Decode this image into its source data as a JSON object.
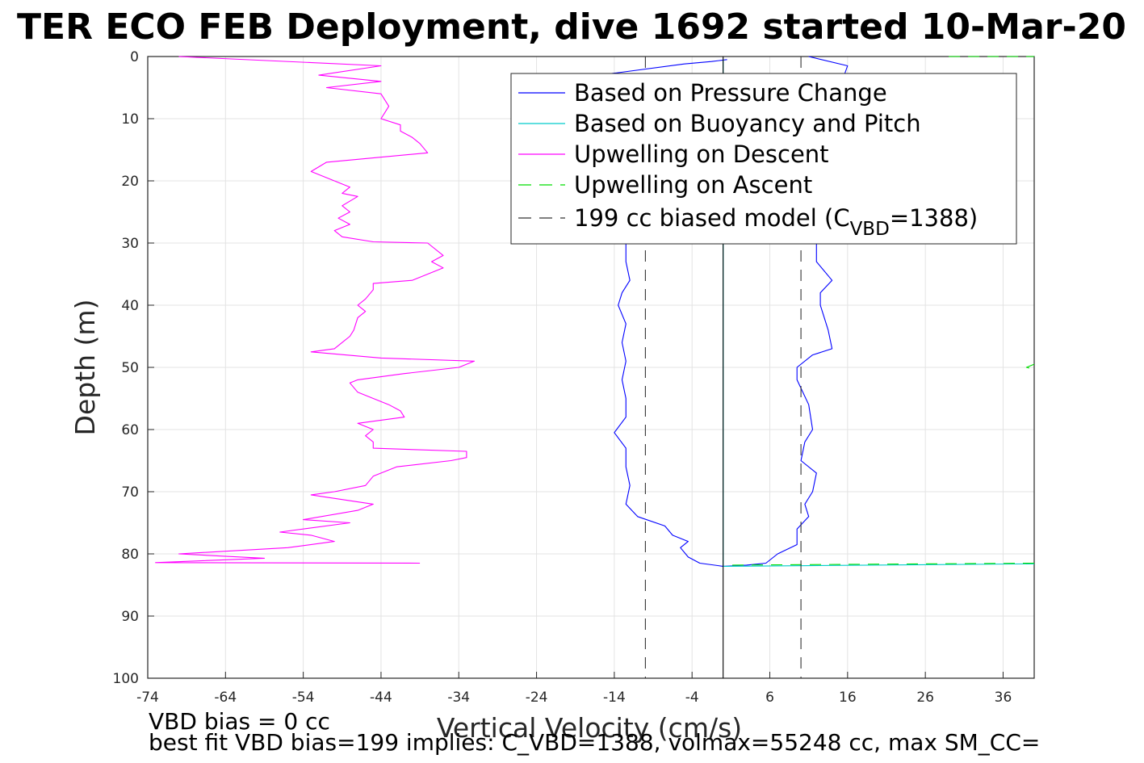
{
  "chart_data": {
    "type": "line",
    "title": "TER ECO FEB Deployment, dive 1692 started 10-Mar-20",
    "xlabel": "Vertical Velocity (cm/s)",
    "ylabel": "Depth (m)",
    "xlim": [
      -74,
      40
    ],
    "ylim": [
      0,
      100
    ],
    "y_reversed": true,
    "grid": true,
    "xticks": [
      -74,
      -64,
      -54,
      -44,
      -34,
      -24,
      -14,
      -4,
      6,
      16,
      26,
      36
    ],
    "yticks": [
      0,
      10,
      20,
      30,
      40,
      50,
      60,
      70,
      80,
      90,
      100
    ],
    "legend_position": "top-right",
    "legend": [
      {
        "label": "Based on Pressure Change",
        "color": "#0000ff",
        "style": "solid"
      },
      {
        "label": "Based on Buoyancy and Pitch",
        "color": "#00cccc",
        "style": "solid"
      },
      {
        "label": "Upwelling on Descent",
        "color": "#ff00ff",
        "style": "solid"
      },
      {
        "label": "Upwelling on Ascent",
        "color": "#00dd00",
        "style": "dashed"
      },
      {
        "label_main": "199 cc biased model (C",
        "label_sub": "VBD",
        "label_end": "=1388)",
        "color": "#333333",
        "style": "dashed"
      }
    ],
    "series": [
      {
        "name": "Based on Pressure Change",
        "color": "#0000ff",
        "style": "solid",
        "points": [
          [
            0.5,
            0.5
          ],
          [
            -1.5,
            0.8
          ],
          [
            -5,
            1.2
          ],
          [
            -19,
            3.5
          ],
          [
            -27,
            6.5
          ],
          [
            -19.5,
            10
          ],
          [
            -11,
            12
          ],
          [
            -10.5,
            16
          ],
          [
            -12,
            22
          ],
          [
            -11.5,
            26
          ],
          [
            -12.5,
            30
          ],
          [
            -12.5,
            33
          ],
          [
            -12,
            36
          ],
          [
            -13,
            38
          ],
          [
            -13.5,
            40
          ],
          [
            -12.5,
            43
          ],
          [
            -13,
            46
          ],
          [
            -12.5,
            49
          ],
          [
            -13,
            52
          ],
          [
            -12.5,
            55
          ],
          [
            -12.5,
            58
          ],
          [
            -14,
            60.5
          ],
          [
            -12.5,
            63
          ],
          [
            -12.5,
            66
          ],
          [
            -12,
            69
          ],
          [
            -12.5,
            72
          ],
          [
            -11,
            74
          ],
          [
            -7.5,
            75.5
          ],
          [
            -6.5,
            77
          ],
          [
            -4.5,
            78
          ],
          [
            -5.5,
            79
          ],
          [
            -4.5,
            80.5
          ],
          [
            -3,
            81.5
          ],
          [
            0,
            82
          ],
          [
            3,
            81.8
          ],
          [
            5.5,
            81.5
          ],
          [
            7,
            80
          ],
          [
            9.5,
            78.5
          ],
          [
            9.5,
            76
          ],
          [
            11,
            74
          ],
          [
            10.5,
            72
          ],
          [
            11.5,
            70
          ],
          [
            12,
            67
          ],
          [
            10,
            65
          ],
          [
            10.5,
            62
          ],
          [
            11.5,
            60
          ],
          [
            11,
            56
          ],
          [
            9.5,
            52
          ],
          [
            9.5,
            50
          ],
          [
            11.5,
            48
          ],
          [
            14,
            47
          ],
          [
            13.5,
            44
          ],
          [
            12.5,
            40
          ],
          [
            12.5,
            38
          ],
          [
            14,
            36
          ],
          [
            12,
            33
          ],
          [
            12,
            29
          ],
          [
            12,
            25
          ],
          [
            12,
            21
          ],
          [
            12,
            17
          ],
          [
            12,
            14
          ],
          [
            12.5,
            11
          ],
          [
            13,
            8
          ],
          [
            15,
            5
          ],
          [
            16,
            1.5
          ],
          [
            11,
            0
          ]
        ]
      },
      {
        "name": "Based on Buoyancy and Pitch",
        "color": "#00cccc",
        "style": "solid",
        "points": [
          [
            0,
            0.5
          ],
          [
            0,
            82
          ],
          [
            40,
            81.6
          ]
        ]
      },
      {
        "name": "Upwelling on Descent",
        "color": "#ff00ff",
        "style": "solid",
        "points": [
          [
            -70,
            0
          ],
          [
            -44,
            1.5
          ],
          [
            -52,
            3
          ],
          [
            -44,
            4
          ],
          [
            -51,
            5
          ],
          [
            -44,
            6
          ],
          [
            -43,
            8
          ],
          [
            -43.5,
            9
          ],
          [
            -44,
            10
          ],
          [
            -41.5,
            11
          ],
          [
            -41.5,
            12
          ],
          [
            -40,
            13
          ],
          [
            -39,
            14
          ],
          [
            -38,
            15.5
          ],
          [
            -51,
            17
          ],
          [
            -53,
            18.5
          ],
          [
            -48,
            21
          ],
          [
            -49,
            22
          ],
          [
            -47,
            22.5
          ],
          [
            -49,
            24
          ],
          [
            -48,
            25
          ],
          [
            -49.5,
            26
          ],
          [
            -48,
            27
          ],
          [
            -50,
            28
          ],
          [
            -49,
            29
          ],
          [
            -45,
            29.8
          ],
          [
            -38,
            30
          ],
          [
            -36,
            32
          ],
          [
            -37.5,
            33
          ],
          [
            -36,
            34
          ],
          [
            -40,
            36
          ],
          [
            -45,
            36.5
          ],
          [
            -45,
            37.5
          ],
          [
            -46,
            39
          ],
          [
            -47,
            40
          ],
          [
            -46,
            41
          ],
          [
            -47,
            42
          ],
          [
            -47.5,
            44
          ],
          [
            -48,
            45
          ],
          [
            -49,
            46
          ],
          [
            -50,
            47
          ],
          [
            -53,
            47.5
          ],
          [
            -44,
            48.5
          ],
          [
            -32,
            49
          ],
          [
            -34,
            50
          ],
          [
            -41,
            51
          ],
          [
            -47,
            52
          ],
          [
            -48,
            52.5
          ],
          [
            -47,
            54
          ],
          [
            -45,
            55
          ],
          [
            -43,
            56
          ],
          [
            -41.5,
            57
          ],
          [
            -41,
            58
          ],
          [
            -47,
            59
          ],
          [
            -45,
            60
          ],
          [
            -46,
            61
          ],
          [
            -45,
            62
          ],
          [
            -45,
            63
          ],
          [
            -33,
            63.5
          ],
          [
            -33,
            64.5
          ],
          [
            -35,
            65
          ],
          [
            -42,
            66
          ],
          [
            -45,
            67.5
          ],
          [
            -46,
            69
          ],
          [
            -50,
            70
          ],
          [
            -53,
            70.5
          ],
          [
            -45,
            72
          ],
          [
            -47,
            73
          ],
          [
            -54,
            74.5
          ],
          [
            -48,
            75
          ],
          [
            -57,
            76.5
          ],
          [
            -53,
            77
          ],
          [
            -50,
            78
          ],
          [
            -56,
            79
          ],
          [
            -70,
            80
          ],
          [
            -62,
            80.5
          ],
          [
            -59,
            80.7
          ],
          [
            -73,
            81.4
          ],
          [
            -39,
            81.5
          ]
        ]
      },
      {
        "name": "Upwelling on Ascent",
        "color": "#00dd00",
        "style": "dashed",
        "points": [
          [
            40,
            81.5
          ],
          [
            1,
            81.8
          ]
        ]
      },
      {
        "name": "Upwelling on Ascent",
        "color": "#00dd00",
        "style": "dashed",
        "points": [
          [
            29,
            0
          ],
          [
            40,
            0
          ]
        ]
      },
      {
        "name": "Upwelling on Ascent",
        "color": "#00dd00",
        "style": "dashed",
        "points": [
          [
            40,
            49.5
          ],
          [
            39,
            50
          ],
          [
            40,
            50.3
          ]
        ]
      },
      {
        "name": "199 cc biased model",
        "color": "#333333",
        "style": "dashed",
        "points": [
          [
            -10,
            0
          ],
          [
            -10,
            100
          ]
        ]
      },
      {
        "name": "199 cc biased model",
        "color": "#333333",
        "style": "dashed",
        "points": [
          [
            10,
            0
          ],
          [
            10,
            100
          ]
        ]
      },
      {
        "name": "zero line",
        "color": "#000000",
        "style": "solid",
        "points": [
          [
            0,
            0
          ],
          [
            0,
            100
          ]
        ]
      }
    ]
  },
  "notes": {
    "line1": "VBD bias = 0 cc",
    "line2": "best fit VBD bias=199 implies: C_VBD=1388, volmax=55248 cc, max SM_CC="
  }
}
